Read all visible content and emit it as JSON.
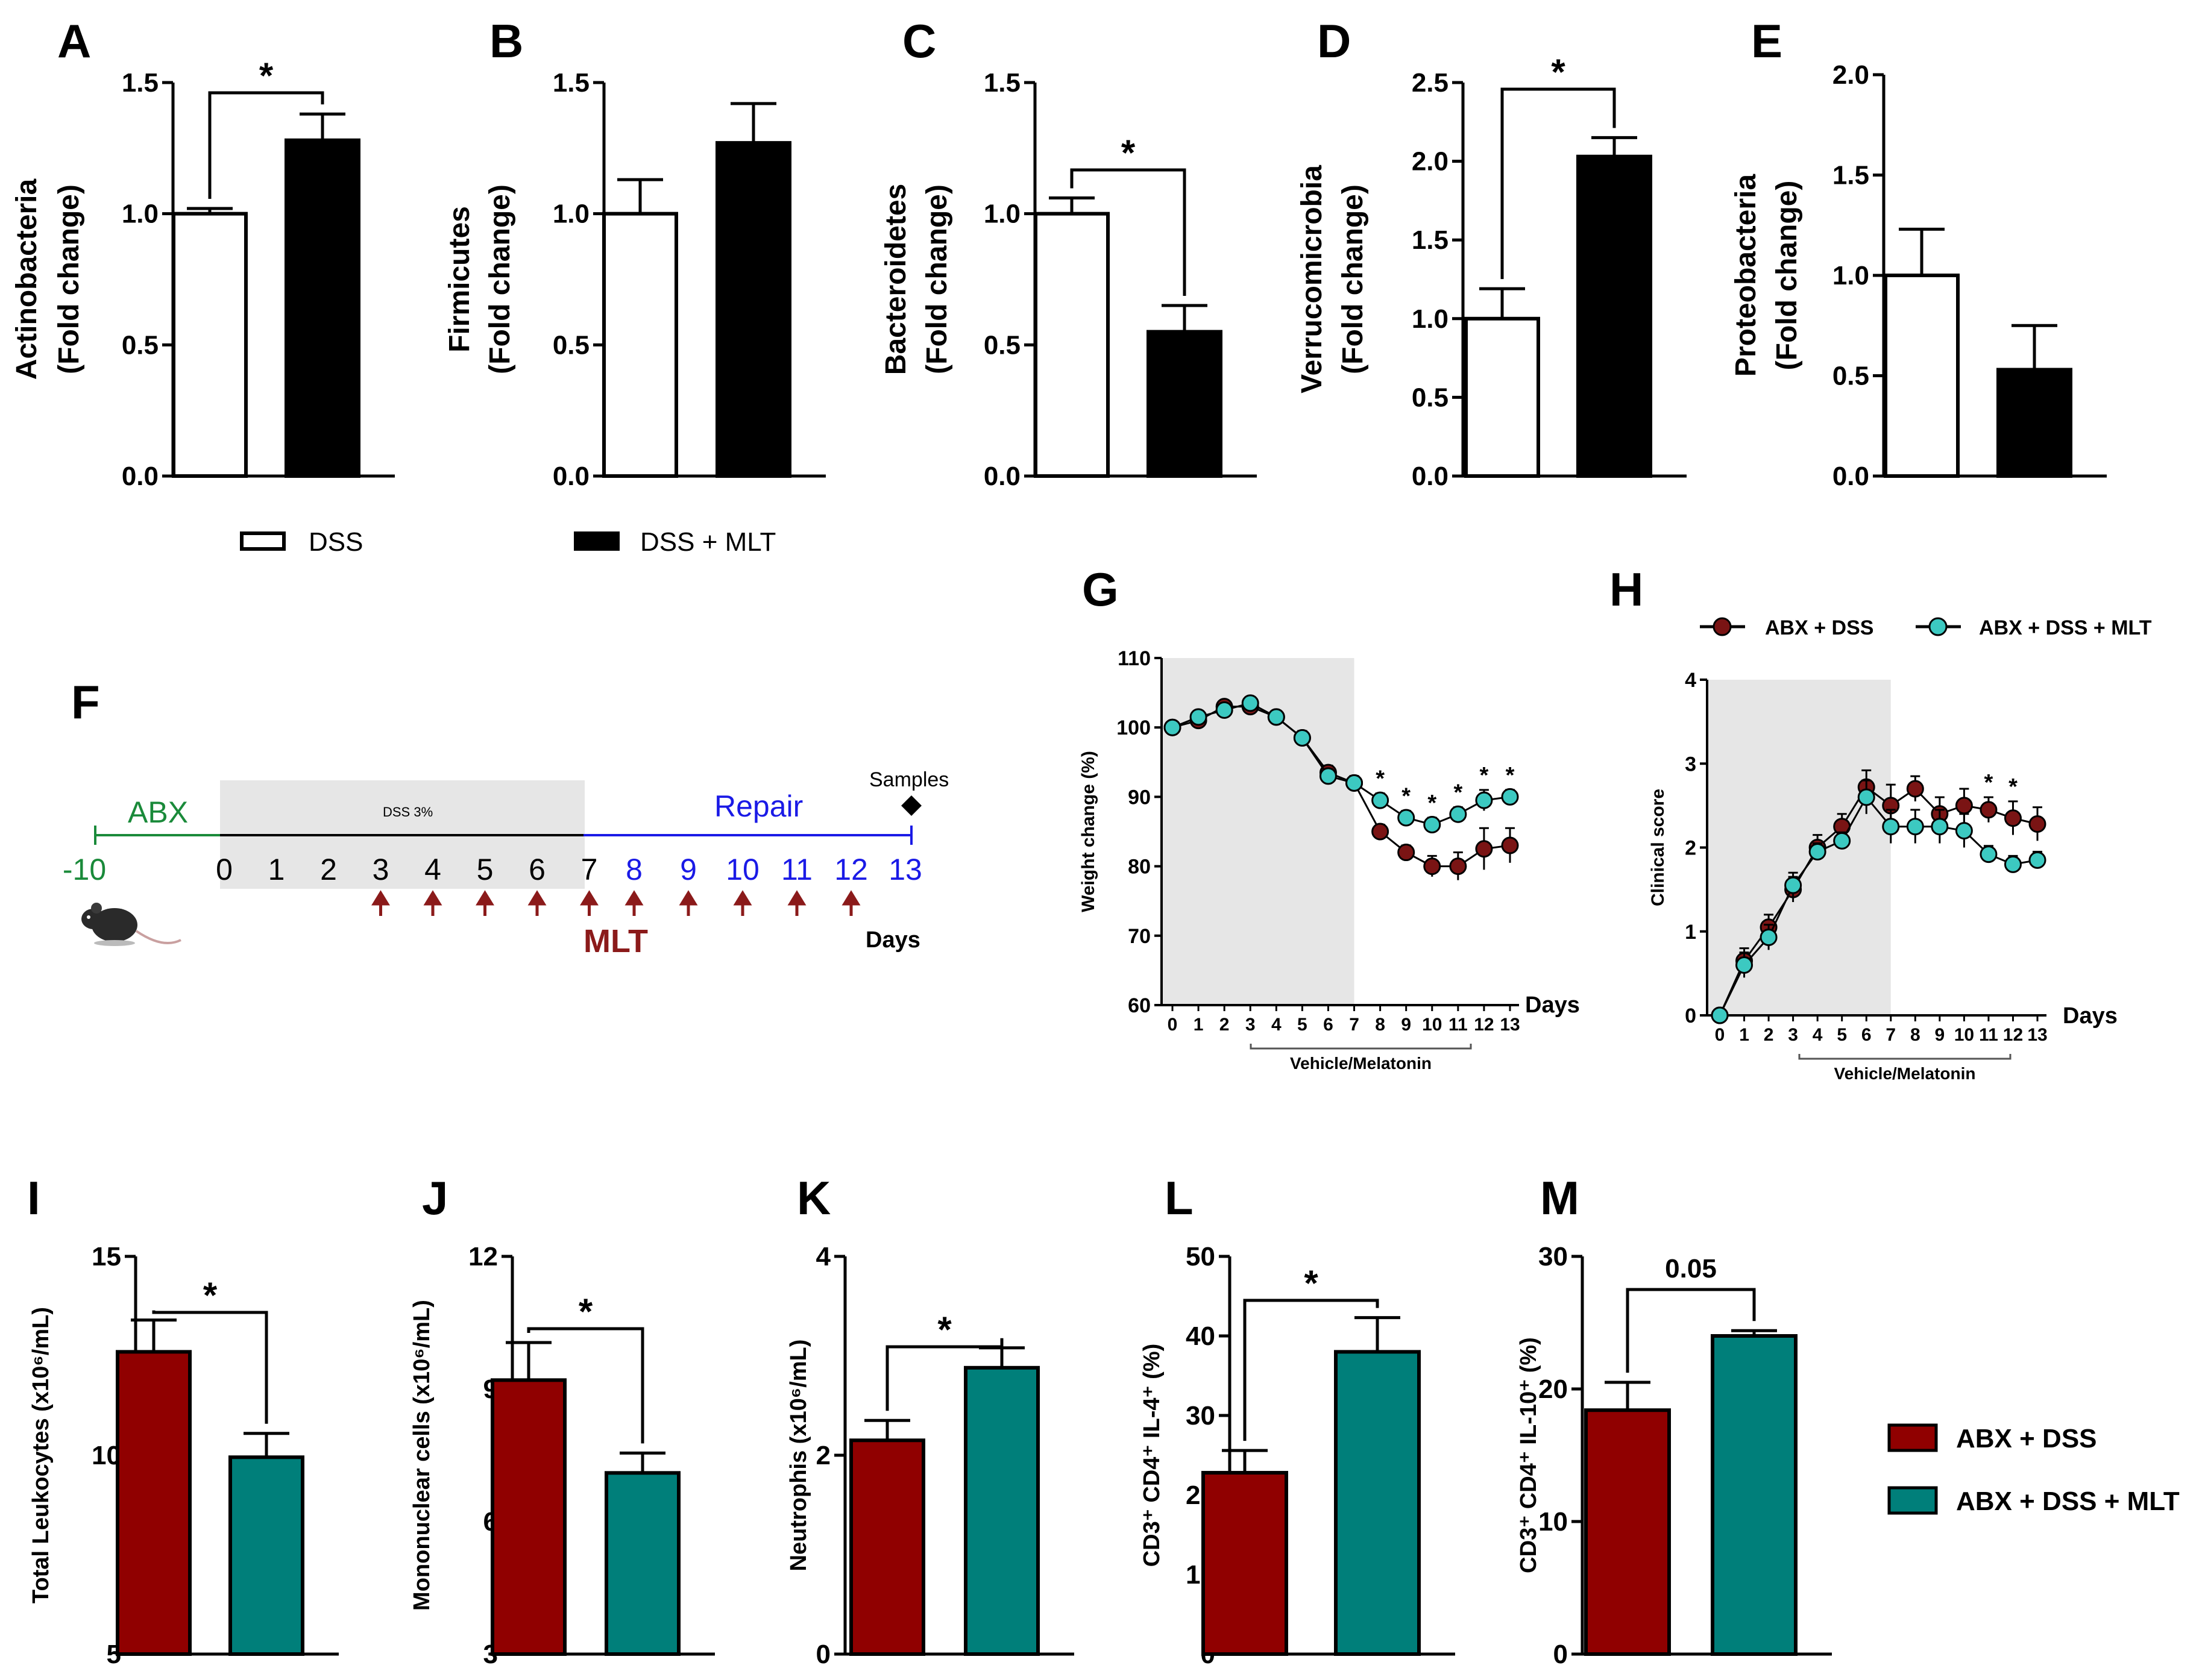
{
  "colors": {
    "white_bar": "#ffffff",
    "black_bar": "#000000",
    "dss_red": "#900000",
    "mlt_teal": "#007f7a",
    "teal_marker": "#3cc9c1",
    "red_marker": "#7a1414",
    "shade": "#e6e6e6",
    "abx_green": "#1a8a3a",
    "repair_blue": "#1a1ae6",
    "arrow_red": "#8b1a1a"
  },
  "legend_top": {
    "dss": "DSS",
    "dss_mlt": "DSS + MLT"
  },
  "legend_gh": {
    "a": "ABX + DSS",
    "b": "ABX + DSS + MLT"
  },
  "legend_bottom": {
    "a": "ABX + DSS",
    "b": "ABX + DSS + MLT"
  },
  "timeline": {
    "label": "F",
    "abx_label": "ABX",
    "dss_label": "DSS 3%",
    "repair_label": "Repair",
    "samples_label": "Samples",
    "mlt_label": "MLT",
    "days_label": "Days",
    "day_ticks": [
      "-10",
      "0",
      "1",
      "2",
      "3",
      "4",
      "5",
      "6",
      "7",
      "8",
      "9",
      "10",
      "11",
      "12",
      "13"
    ],
    "mlt_days": [
      3,
      4,
      5,
      6,
      7,
      8,
      9,
      10,
      11,
      12
    ]
  },
  "chart_data": [
    {
      "id": "A",
      "type": "bar",
      "ylabel_line1": "Actinobacteria",
      "ylabel_line2": "(Fold change)",
      "ylim": [
        0,
        1.5
      ],
      "yticks": [
        "0.0",
        "0.5",
        "1.0",
        "1.5"
      ],
      "yticks_v": [
        0,
        0.5,
        1.0,
        1.5
      ],
      "categories": [
        "DSS",
        "DSS + MLT"
      ],
      "values": [
        1.0,
        1.28
      ],
      "errors": [
        0.02,
        0.1
      ],
      "significance": "*",
      "sig_from": 0,
      "sig_to": 1
    },
    {
      "id": "B",
      "type": "bar",
      "ylabel_line1": "Firmicutes",
      "ylabel_line2": "(Fold change)",
      "ylim": [
        0,
        1.5
      ],
      "yticks": [
        "0.0",
        "0.5",
        "1.0",
        "1.5"
      ],
      "yticks_v": [
        0,
        0.5,
        1.0,
        1.5
      ],
      "categories": [
        "DSS",
        "DSS + MLT"
      ],
      "values": [
        1.0,
        1.27
      ],
      "errors": [
        0.13,
        0.15
      ],
      "significance": "",
      "sig_from": null,
      "sig_to": null
    },
    {
      "id": "C",
      "type": "bar",
      "ylabel_line1": "Bacteroidetes",
      "ylabel_line2": "(Fold change)",
      "ylim": [
        0,
        1.5
      ],
      "yticks": [
        "0.0",
        "0.5",
        "1.0",
        "1.5"
      ],
      "yticks_v": [
        0,
        0.5,
        1.0,
        1.5
      ],
      "categories": [
        "DSS",
        "DSS + MLT"
      ],
      "values": [
        1.0,
        0.55
      ],
      "errors": [
        0.06,
        0.1
      ],
      "significance": "*",
      "sig_from": 0,
      "sig_to": 1
    },
    {
      "id": "D",
      "type": "bar",
      "ylabel_line1": "Verrucomicrobia",
      "ylabel_line2": "(Fold change)",
      "ylim": [
        0,
        2.5
      ],
      "yticks": [
        "0.0",
        "0.5",
        "1.0",
        "1.5",
        "2.0",
        "2.5"
      ],
      "yticks_v": [
        0,
        0.5,
        1.0,
        1.5,
        2.0,
        2.5
      ],
      "categories": [
        "DSS",
        "DSS + MLT"
      ],
      "values": [
        1.0,
        2.03
      ],
      "errors": [
        0.19,
        0.12
      ],
      "significance": "*",
      "sig_from": 0,
      "sig_to": 1
    },
    {
      "id": "E",
      "type": "bar",
      "ylabel_line1": "Proteobacteria",
      "ylabel_line2": "(Fold change)",
      "ylim": [
        0,
        2.0
      ],
      "yticks": [
        "0.0",
        "0.5",
        "1.0",
        "1.5",
        "2.0"
      ],
      "yticks_v": [
        0,
        0.5,
        1.0,
        1.5,
        2.0
      ],
      "categories": [
        "DSS",
        "DSS + MLT"
      ],
      "values": [
        1.0,
        0.53
      ],
      "errors": [
        0.23,
        0.22
      ],
      "significance": "",
      "sig_from": null,
      "sig_to": null
    },
    {
      "id": "G",
      "type": "line",
      "ylabel": "Weight change (%)",
      "xlabel": "Days",
      "bracket_label": "Vehicle/Melatonin",
      "ylim": [
        60,
        110
      ],
      "yticks": [
        "60",
        "70",
        "80",
        "90",
        "100",
        "110"
      ],
      "yticks_v": [
        60,
        70,
        80,
        90,
        100,
        110
      ],
      "x": [
        0,
        1,
        2,
        3,
        4,
        5,
        6,
        7,
        8,
        9,
        10,
        11,
        12,
        13
      ],
      "xticks": [
        "0",
        "1",
        "2",
        "3",
        "4",
        "5",
        "6",
        "7",
        "8",
        "9",
        "10",
        "11",
        "12",
        "13"
      ],
      "shaded": [
        0,
        7
      ],
      "series": [
        {
          "name": "ABX + DSS",
          "values": [
            100,
            101,
            103,
            103,
            101.5,
            98.5,
            93.5,
            92,
            85,
            82,
            80,
            80,
            82.5,
            83
          ],
          "errors": [
            0.3,
            0.5,
            0.5,
            0.5,
            0.5,
            1,
            1,
            1,
            1,
            1,
            1.5,
            2,
            3,
            2.5
          ]
        },
        {
          "name": "ABX + DSS + MLT",
          "values": [
            100,
            101.5,
            102.5,
            103.5,
            101.5,
            98.5,
            93,
            92,
            89.5,
            87,
            86,
            87.5,
            89.5,
            90
          ],
          "errors": [
            0.3,
            0.5,
            0.5,
            0.5,
            0.5,
            1,
            1,
            1,
            1,
            1,
            1,
            1,
            1.5,
            1
          ]
        }
      ],
      "sig_days": [
        8,
        9,
        10,
        11,
        12,
        13
      ],
      "significance": "*"
    },
    {
      "id": "H",
      "type": "line",
      "ylabel": "Clinical score",
      "xlabel": "Days",
      "bracket_label": "Vehicle/Melatonin",
      "ylim": [
        0,
        4
      ],
      "yticks": [
        "0",
        "1",
        "2",
        "3",
        "4"
      ],
      "yticks_v": [
        0,
        1,
        2,
        3,
        4
      ],
      "x": [
        0,
        1,
        2,
        3,
        4,
        5,
        6,
        7,
        8,
        9,
        10,
        11,
        12,
        13
      ],
      "xticks": [
        "0",
        "1",
        "2",
        "3",
        "4",
        "5",
        "6",
        "7",
        "8",
        "9",
        "10",
        "11",
        "12",
        "13"
      ],
      "shaded": [
        0,
        7
      ],
      "series": [
        {
          "name": "ABX + DSS",
          "values": [
            0,
            0.65,
            1.05,
            1.5,
            2.0,
            2.25,
            2.72,
            2.5,
            2.7,
            2.4,
            2.5,
            2.45,
            2.35,
            2.28
          ],
          "errors": [
            0,
            0.15,
            0.15,
            0.15,
            0.15,
            0.15,
            0.2,
            0.25,
            0.15,
            0.2,
            0.2,
            0.15,
            0.2,
            0.2
          ]
        },
        {
          "name": "ABX + DSS + MLT",
          "values": [
            0,
            0.6,
            0.93,
            1.55,
            1.95,
            2.08,
            2.6,
            2.25,
            2.25,
            2.25,
            2.2,
            1.92,
            1.8,
            1.85
          ],
          "errors": [
            0,
            0.15,
            0.15,
            0.15,
            0.1,
            0.1,
            0.2,
            0.2,
            0.2,
            0.2,
            0.2,
            0.1,
            0.1,
            0.1
          ]
        }
      ],
      "sig_days": [
        11,
        12
      ],
      "significance": "*"
    },
    {
      "id": "I",
      "type": "bar",
      "ylabel": "Total Leukocytes (x10⁶/mL)",
      "ylim": [
        5,
        15
      ],
      "yticks": [
        "5",
        "10",
        "15"
      ],
      "yticks_v": [
        5,
        10,
        15
      ],
      "categories": [
        "ABX + DSS",
        "ABX + DSS + MLT"
      ],
      "values": [
        12.6,
        9.95
      ],
      "errors": [
        0.8,
        0.6
      ],
      "significance": "*",
      "sig_from": 0,
      "sig_to": 1
    },
    {
      "id": "J",
      "type": "bar",
      "ylabel": "Mononuclear cells (x10⁶/mL)",
      "ylim": [
        3,
        12
      ],
      "yticks": [
        "3",
        "6",
        "9",
        "12"
      ],
      "yticks_v": [
        3,
        6,
        9,
        12
      ],
      "categories": [
        "ABX + DSS",
        "ABX + DSS + MLT"
      ],
      "values": [
        9.2,
        7.1
      ],
      "errors": [
        0.85,
        0.45
      ],
      "significance": "*",
      "sig_from": 0,
      "sig_to": 1
    },
    {
      "id": "K",
      "type": "bar",
      "ylabel": "Neutrophis (x10⁶/mL)",
      "ylim": [
        0,
        4
      ],
      "yticks": [
        "0",
        "2",
        "4"
      ],
      "yticks_v": [
        0,
        2,
        4
      ],
      "categories": [
        "ABX + DSS",
        "ABX + DSS + MLT"
      ],
      "values": [
        2.15,
        2.88
      ],
      "errors": [
        0.2,
        0.2
      ],
      "significance": "*",
      "sig_from": 0,
      "sig_to": 1
    },
    {
      "id": "L",
      "type": "bar",
      "ylabel": "CD3⁺ CD4⁺ IL-4⁺ (%)",
      "ylim": [
        0,
        50
      ],
      "yticks": [
        "0",
        "10",
        "20",
        "30",
        "40",
        "50"
      ],
      "yticks_v": [
        0,
        10,
        20,
        30,
        40,
        50
      ],
      "categories": [
        "ABX + DSS",
        "ABX + DSS + MLT"
      ],
      "values": [
        22.8,
        38
      ],
      "errors": [
        2.8,
        4.3
      ],
      "significance": "*",
      "sig_from": 0,
      "sig_to": 1
    },
    {
      "id": "M",
      "type": "bar",
      "ylabel": "CD3⁺ CD4⁺ IL-10⁺ (%)",
      "ylim": [
        0,
        30
      ],
      "yticks": [
        "0",
        "10",
        "20",
        "30"
      ],
      "yticks_v": [
        0,
        10,
        20,
        30
      ],
      "categories": [
        "ABX + DSS",
        "ABX + DSS + MLT"
      ],
      "values": [
        18.4,
        24
      ],
      "errors": [
        2.1,
        0.4
      ],
      "significance": "0.05",
      "sig_from": 0,
      "sig_to": 1
    }
  ]
}
